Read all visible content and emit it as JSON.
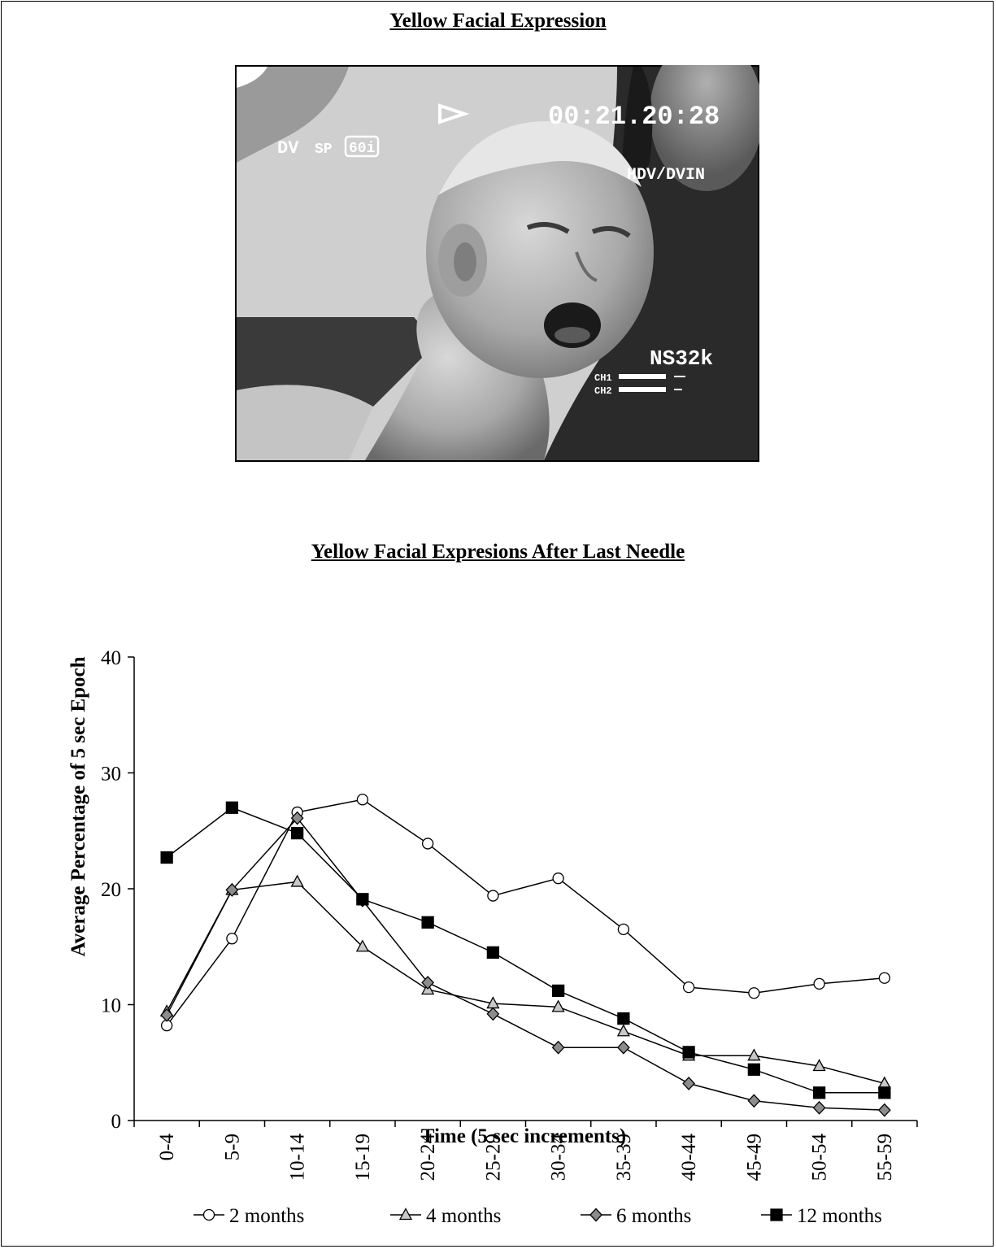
{
  "photo_title": "Yellow Facial Expression",
  "photo": {
    "description_icon": "crying-infant-photo",
    "overlay": {
      "format": "DV",
      "speed": "SP",
      "rate": "60i",
      "timecode": "00:21.20:28",
      "input": "HDV/DVIN",
      "audio_mode": "NS32k",
      "ch1": "CH1",
      "ch2": "CH2"
    }
  },
  "chart_data": {
    "type": "line",
    "title": "Yellow Facial Expresions After Last Needle",
    "xlabel": "Time (5 sec increments)",
    "ylabel": "Average Percentage of 5 sec Epoch",
    "ylim": [
      0,
      40
    ],
    "yticks": [
      0,
      10,
      20,
      30,
      40
    ],
    "categories": [
      "0-4",
      "5-9",
      "10-14",
      "15-19",
      "20-24",
      "25-29",
      "30-34",
      "35-39",
      "40-44",
      "45-49",
      "50-54",
      "55-59"
    ],
    "legend_position": "bottom",
    "series": [
      {
        "name": "2 months",
        "marker": "circle",
        "fill": "#ffffff",
        "values": [
          8.2,
          15.7,
          26.6,
          27.7,
          23.9,
          19.4,
          20.9,
          16.5,
          11.5,
          11.0,
          11.8,
          12.3
        ]
      },
      {
        "name": "4 months",
        "marker": "triangle",
        "fill": "#c8c8c8",
        "values": [
          9.4,
          19.9,
          20.6,
          15.0,
          11.3,
          10.1,
          9.8,
          7.7,
          5.6,
          5.6,
          4.7,
          3.2
        ]
      },
      {
        "name": "6 months",
        "marker": "diamond",
        "fill": "#8c8c8c",
        "values": [
          9.1,
          19.9,
          26.1,
          19.0,
          11.9,
          9.2,
          6.3,
          6.3,
          3.2,
          1.7,
          1.1,
          0.9
        ]
      },
      {
        "name": "12 months",
        "marker": "square",
        "fill": "#000000",
        "values": [
          22.7,
          27.0,
          24.8,
          19.1,
          17.1,
          14.5,
          11.2,
          8.8,
          5.9,
          4.4,
          2.4,
          2.4
        ]
      }
    ]
  }
}
